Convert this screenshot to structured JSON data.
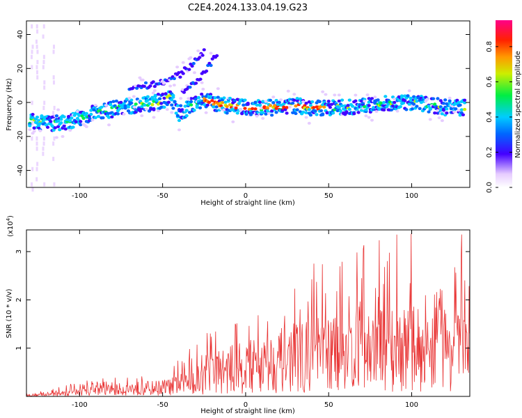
{
  "figure_title": "C2E4.2024.133.04.19.G23",
  "chart_data": [
    {
      "type": "heatmap",
      "xlabel": "Height of straight line (km)",
      "ylabel": "Frequency (Hz)",
      "xlim": [
        -132,
        135
      ],
      "ylim": [
        -50,
        48
      ],
      "x_ticks": [
        -100,
        -50,
        0,
        50,
        100
      ],
      "y_ticks": [
        -40,
        -20,
        0,
        20,
        40
      ],
      "colorbar": {
        "label": "Normalized spectral amplitude",
        "range": [
          0.0,
          0.95
        ],
        "ticks": [
          0.0,
          0.2,
          0.4,
          0.6,
          0.8
        ]
      },
      "ridges": [
        {
          "x": [
            -130,
            -120,
            -110,
            -100,
            -90,
            -80,
            -70,
            -60,
            -50,
            -45,
            -40,
            -35,
            -30,
            -25,
            -20,
            -10,
            0,
            10,
            20,
            30,
            40,
            50,
            60,
            70,
            80,
            90,
            100,
            110,
            120,
            132
          ],
          "y": [
            -11,
            -12,
            -12,
            -9,
            -6,
            -4,
            -2,
            -1,
            1,
            3,
            -7,
            -3,
            0,
            2,
            0,
            -2,
            -3,
            -3,
            -3,
            -2,
            -3,
            -3,
            -3,
            -2,
            -1,
            0,
            0,
            -1,
            -3,
            -3
          ]
        },
        {
          "x": [
            -70,
            -60,
            -50,
            -40,
            -35,
            -30,
            -25
          ],
          "y": [
            8,
            10,
            12,
            16,
            20,
            25,
            30
          ]
        },
        {
          "x": [
            -38,
            -30,
            -25,
            -20,
            -17
          ],
          "y": [
            6,
            12,
            18,
            24,
            29
          ]
        }
      ]
    },
    {
      "type": "line",
      "xlabel": "Height of straight line (km)",
      "ylabel": "SNR (10 * v/v)",
      "y_multiplier": "(x10",
      "y_exponent": "4",
      "y_multiplier_close": ")",
      "xlim": [
        -132,
        135
      ],
      "ylim": [
        0,
        3.45
      ],
      "x_ticks": [
        -100,
        -50,
        0,
        50,
        100
      ],
      "y_ticks": [
        1,
        2,
        3
      ],
      "color": "#e83030",
      "envelope": {
        "x": [
          -132,
          -110,
          -90,
          -70,
          -55,
          -45,
          -35,
          -25,
          -20,
          -10,
          0,
          20,
          40,
          60,
          80,
          100,
          120,
          135
        ],
        "y": [
          0.04,
          0.12,
          0.22,
          0.3,
          0.33,
          0.38,
          0.55,
          0.7,
          0.95,
          1.05,
          1.15,
          1.4,
          1.6,
          1.75,
          1.85,
          1.9,
          1.9,
          1.85
        ]
      }
    }
  ]
}
